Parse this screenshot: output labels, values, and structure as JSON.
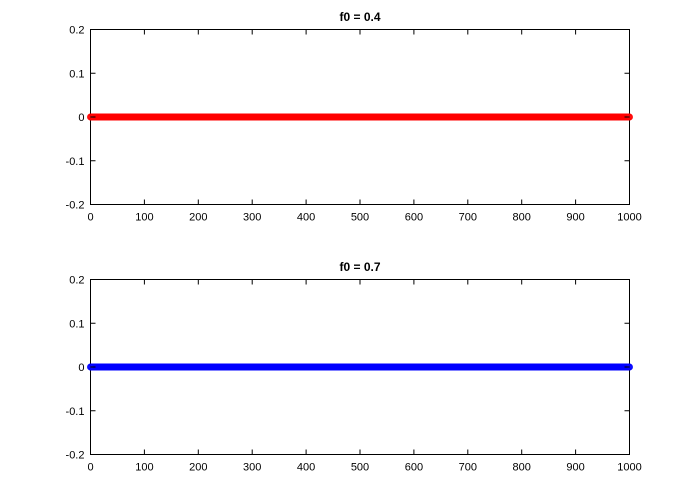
{
  "chart_data": [
    {
      "type": "scatter",
      "title": "f0 = 0.4",
      "xlabel": "",
      "ylabel": "",
      "xlim": [
        0,
        1000
      ],
      "ylim": [
        -0.2,
        0.2
      ],
      "x_ticks": [
        0,
        100,
        200,
        300,
        400,
        500,
        600,
        700,
        800,
        900,
        1000
      ],
      "y_ticks": [
        -0.2,
        -0.1,
        0,
        0.1,
        0.2
      ],
      "grid": false,
      "marker": "circle",
      "color": "#ff0000",
      "series": [
        {
          "x_start": 0,
          "x_end": 1000,
          "x_step": 1,
          "y": 0
        }
      ]
    },
    {
      "type": "scatter",
      "title": "f0 = 0.7",
      "xlabel": "",
      "ylabel": "",
      "xlim": [
        0,
        1000
      ],
      "ylim": [
        -0.2,
        0.2
      ],
      "x_ticks": [
        0,
        100,
        200,
        300,
        400,
        500,
        600,
        700,
        800,
        900,
        1000
      ],
      "y_ticks": [
        -0.2,
        -0.1,
        0,
        0.1,
        0.2
      ],
      "grid": false,
      "marker": "circle",
      "color": "#0000ff",
      "series": [
        {
          "x_start": 0,
          "x_end": 1000,
          "x_step": 1,
          "y": 0
        }
      ]
    }
  ]
}
